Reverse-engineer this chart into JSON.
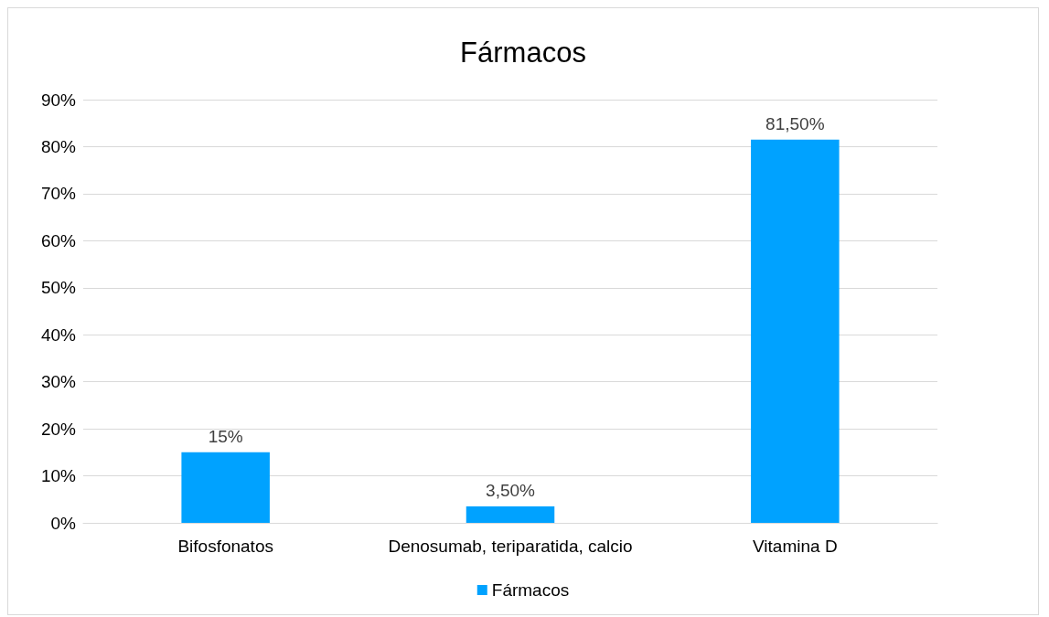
{
  "chart_data": {
    "type": "bar",
    "title": "Fármacos",
    "categories": [
      "Bifosfonatos",
      "Denosumab, teriparatida, calcio",
      "Vitamina D"
    ],
    "series": [
      {
        "name": "Fármacos",
        "color": "#00a2ff",
        "values": [
          15,
          3.5,
          81.5
        ],
        "value_labels": [
          "15%",
          "3,50%",
          "81,50%"
        ]
      }
    ],
    "ylim": [
      0,
      90
    ],
    "yticks": [
      {
        "value": 0,
        "label": "0%"
      },
      {
        "value": 10,
        "label": "10%"
      },
      {
        "value": 20,
        "label": "20%"
      },
      {
        "value": 30,
        "label": "30%"
      },
      {
        "value": 40,
        "label": "40%"
      },
      {
        "value": 50,
        "label": "50%"
      },
      {
        "value": 60,
        "label": "60%"
      },
      {
        "value": 70,
        "label": "70%"
      },
      {
        "value": 80,
        "label": "80%"
      },
      {
        "value": 90,
        "label": "90%"
      }
    ],
    "grid": "y",
    "legend": "bottom"
  }
}
